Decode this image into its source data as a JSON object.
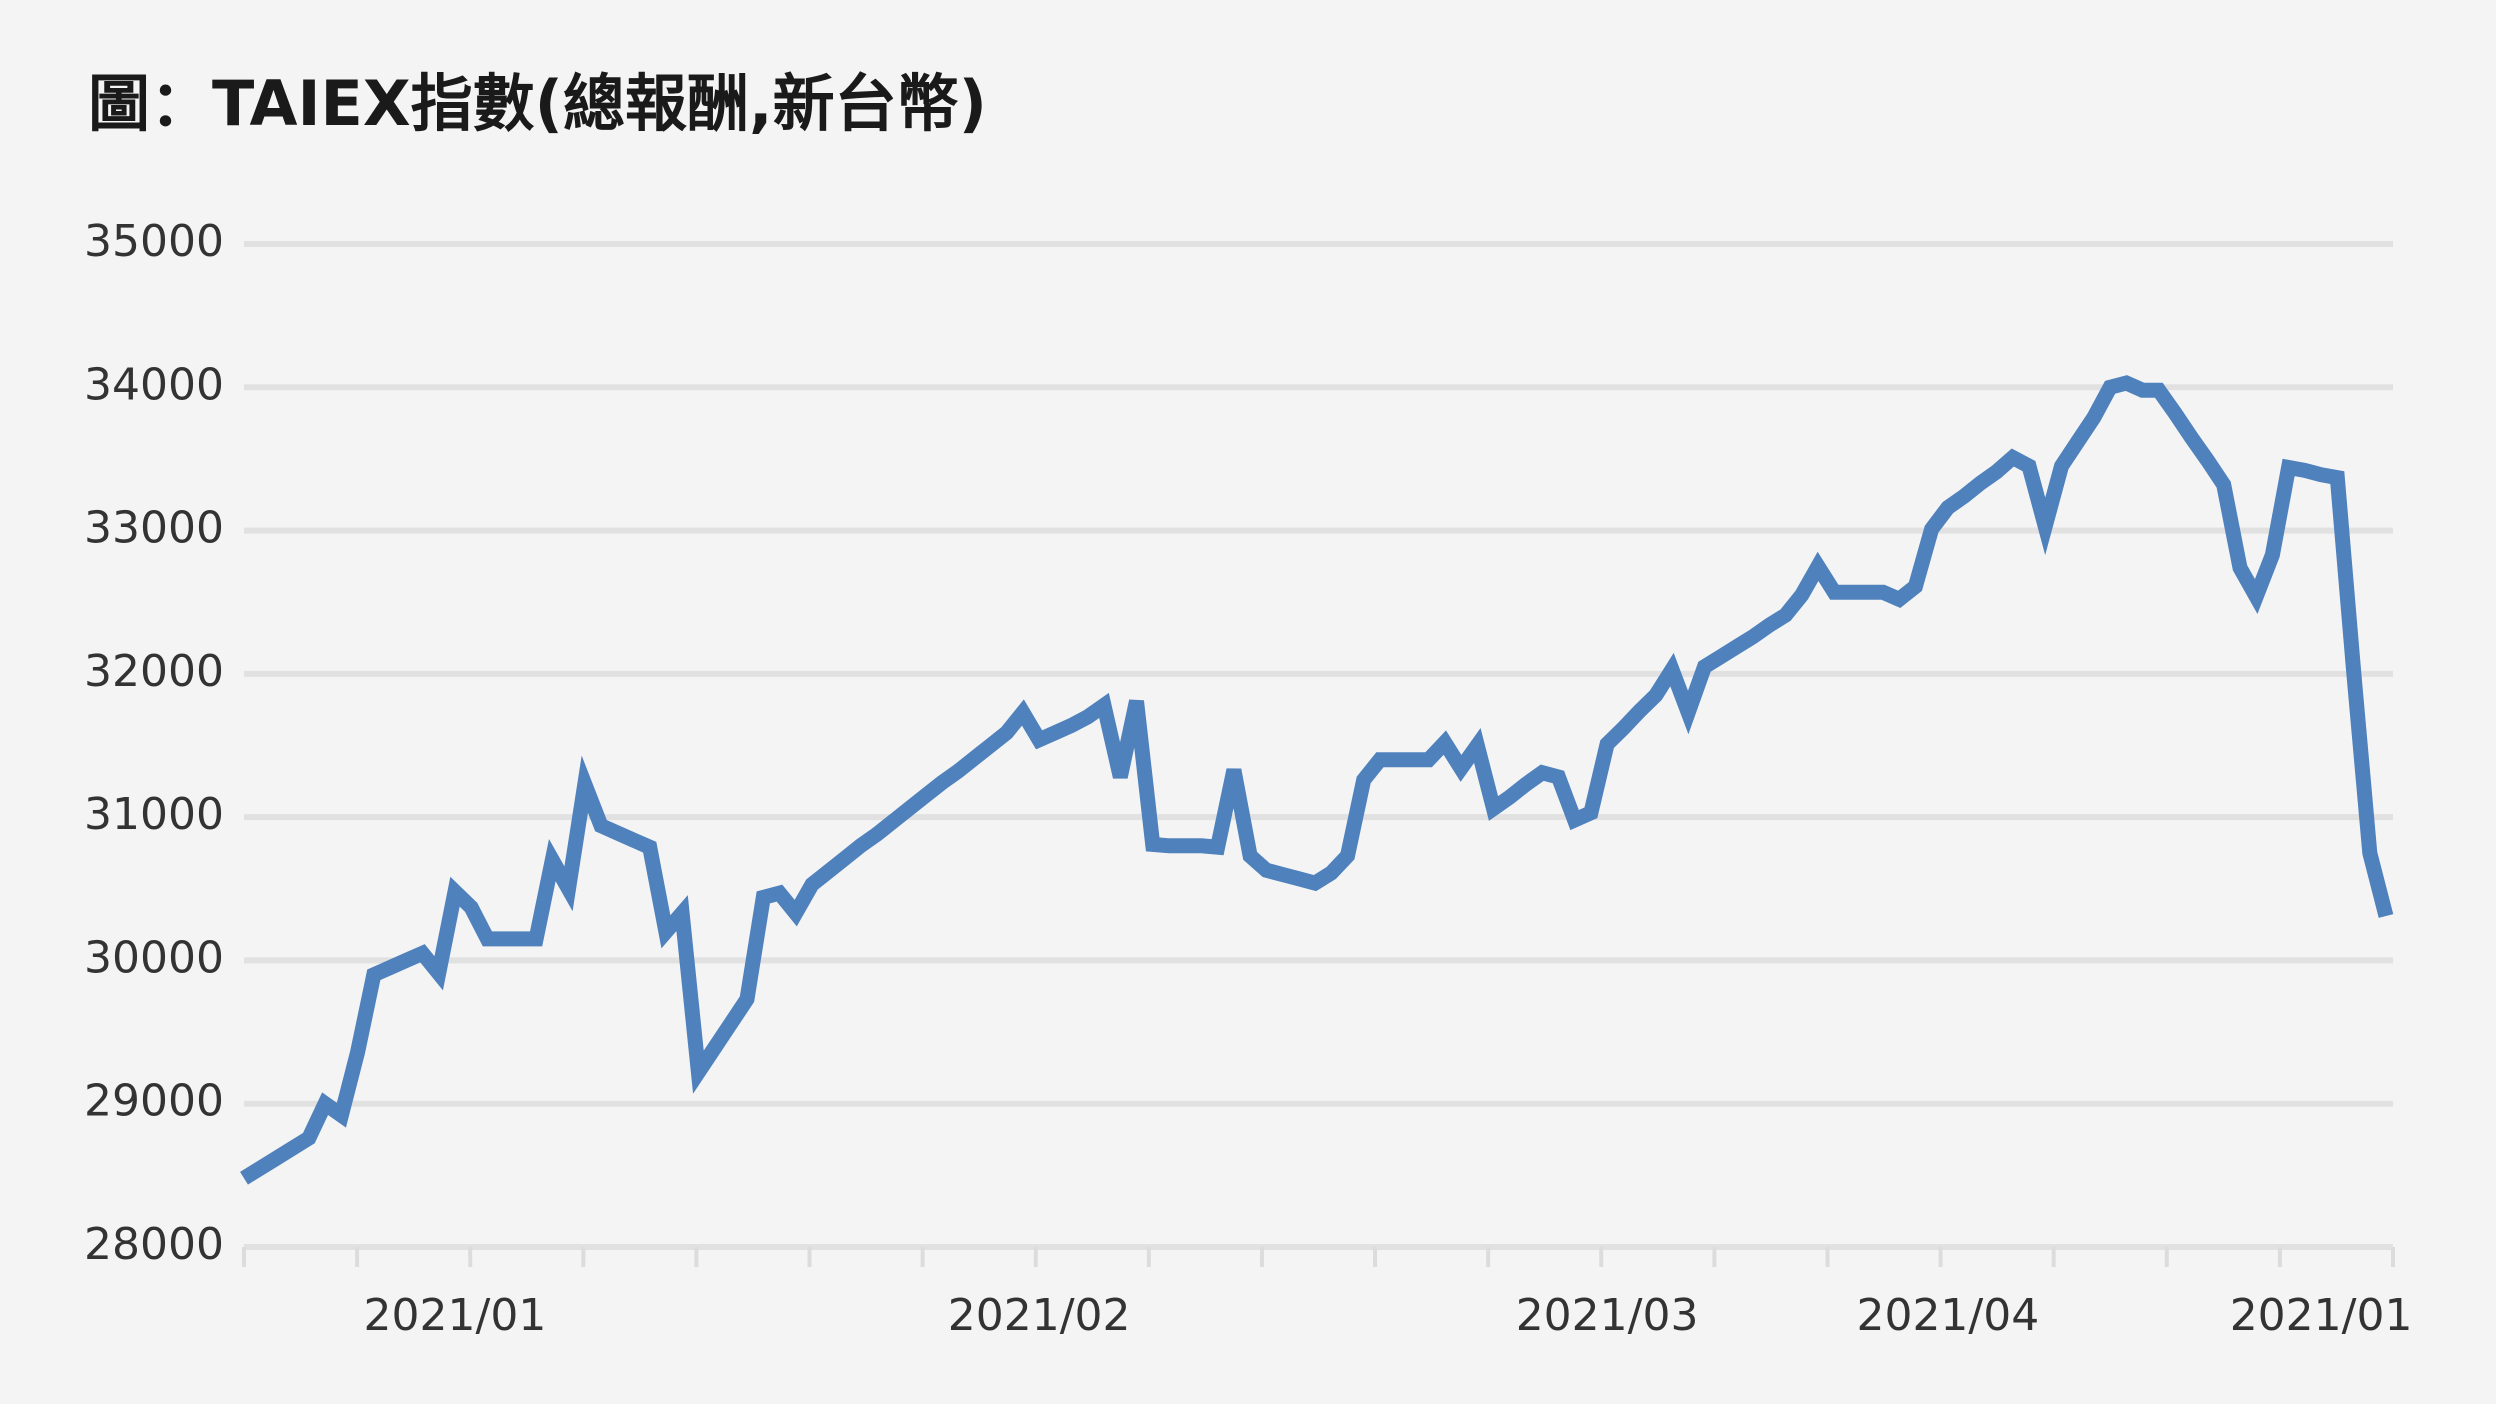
{
  "chart_data": {
    "type": "line",
    "title": "圖：TAIEX指數(總報酬,新台幣)",
    "categories": [
      null,
      null,
      null,
      null,
      null,
      null,
      null,
      null,
      null,
      null,
      null,
      null,
      null,
      "2021/01",
      null,
      null,
      null,
      null,
      null,
      null,
      null,
      null,
      null,
      null,
      null,
      null,
      null,
      null,
      null,
      null,
      null,
      null,
      null,
      null,
      null,
      null,
      null,
      null,
      null,
      null,
      null,
      null,
      null,
      null,
      null,
      null,
      null,
      null,
      null,
      "2021/02",
      null,
      null,
      null,
      null,
      null,
      null,
      null,
      null,
      null,
      null,
      null,
      null,
      null,
      null,
      null,
      null,
      null,
      null,
      null,
      null,
      null,
      null,
      null,
      null,
      null,
      null,
      null,
      null,
      null,
      null,
      null,
      null,
      null,
      null,
      "2021/03",
      null,
      null,
      null,
      null,
      null,
      null,
      null,
      null,
      null,
      null,
      null,
      null,
      null,
      null,
      null,
      null,
      null,
      null,
      null,
      null,
      "2021/04",
      null,
      null,
      null,
      null,
      null,
      null,
      null,
      null,
      null,
      null,
      null,
      null,
      null,
      null,
      null,
      null,
      null,
      null,
      null,
      null,
      null,
      null,
      "2021/01",
      null,
      null,
      null,
      null
    ],
    "series": [
      {
        "color": "#4f81bd",
        "values": [
          28480,
          28550,
          28620,
          28690,
          28760,
          29000,
          28920,
          29360,
          29900,
          29950,
          30000,
          30050,
          29910,
          30480,
          30370,
          30150,
          30150,
          30150,
          30150,
          30700,
          30500,
          31230,
          30940,
          30890,
          30840,
          30790,
          30200,
          30330,
          29220,
          29390,
          29560,
          29730,
          30440,
          30470,
          30330,
          30530,
          30620,
          30710,
          30800,
          30880,
          30970,
          31060,
          31150,
          31240,
          31320,
          31410,
          31500,
          31590,
          31730,
          31540,
          31590,
          31640,
          31700,
          31780,
          31280,
          31810,
          30810,
          30800,
          30800,
          30800,
          30790,
          31330,
          30730,
          30630,
          30600,
          30570,
          30540,
          30610,
          30730,
          31260,
          31400,
          31400,
          31400,
          31400,
          31520,
          31340,
          31500,
          31060,
          31140,
          31230,
          31310,
          31280,
          30980,
          31030,
          31510,
          31620,
          31740,
          31850,
          32030,
          31730,
          32050,
          32120,
          32190,
          32260,
          32340,
          32410,
          32550,
          32750,
          32570,
          32570,
          32570,
          32570,
          32520,
          32610,
          33010,
          33160,
          33240,
          33330,
          33410,
          33510,
          33450,
          33030,
          33450,
          33620,
          33790,
          34000,
          34030,
          33980,
          33980,
          33820,
          33650,
          33490,
          33320,
          32740,
          32540,
          32830,
          33440,
          33420,
          33390,
          33370,
          32030,
          30750,
          30310
        ]
      }
    ],
    "ylim": [
      28000,
      35000
    ],
    "yticks": [
      28000,
      29000,
      30000,
      31000,
      32000,
      33000,
      34000,
      35000
    ],
    "grid": true
  }
}
